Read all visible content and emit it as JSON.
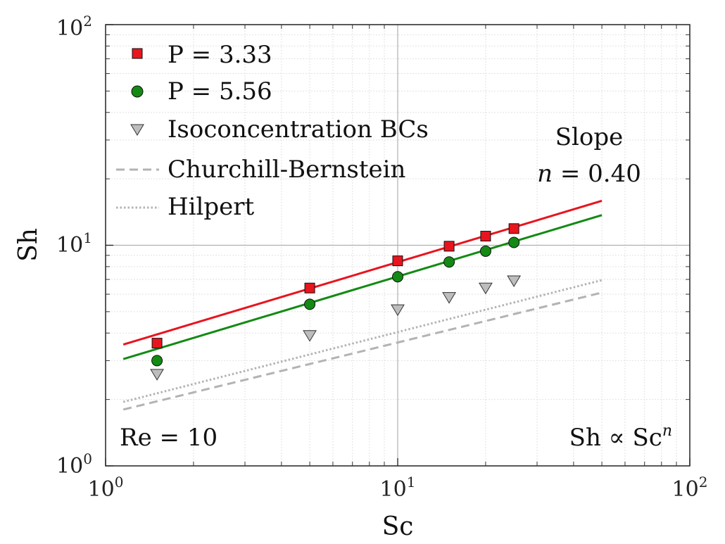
{
  "chart_data": {
    "type": "scatter",
    "title": "",
    "xlabel": "Sc",
    "ylabel": "Sh",
    "xscale": "log",
    "yscale": "log",
    "xlim": [
      1,
      100
    ],
    "ylim": [
      1,
      100
    ],
    "grid": true,
    "legend_position": "top-left",
    "x_tick_labels": [
      {
        "base": "10",
        "exp": "0",
        "value": 1
      },
      {
        "base": "10",
        "exp": "1",
        "value": 10
      },
      {
        "base": "10",
        "exp": "2",
        "value": 100
      }
    ],
    "y_tick_labels": [
      {
        "base": "10",
        "exp": "0",
        "value": 1
      },
      {
        "base": "10",
        "exp": "1",
        "value": 10
      },
      {
        "base": "10",
        "exp": "2",
        "value": 100
      }
    ],
    "series": [
      {
        "name": "P = 3.33",
        "kind": "markers",
        "marker": "square",
        "color": "#e8141e",
        "x": [
          1.5,
          5,
          10,
          15,
          20,
          25
        ],
        "y": [
          3.6,
          6.4,
          8.5,
          9.9,
          11.0,
          11.9
        ]
      },
      {
        "name": "P = 5.56",
        "kind": "markers",
        "marker": "circle",
        "color": "#138a13",
        "x": [
          1.5,
          5,
          10,
          15,
          20,
          25
        ],
        "y": [
          3.0,
          5.4,
          7.2,
          8.4,
          9.4,
          10.3
        ]
      },
      {
        "name": "Isoconcentration BCs",
        "kind": "markers",
        "marker": "triangle-down",
        "color": "#bdbdbd",
        "x": [
          1.5,
          5,
          10,
          15,
          20,
          25
        ],
        "y": [
          2.6,
          3.9,
          5.1,
          5.8,
          6.4,
          6.9
        ]
      },
      {
        "name": "Churchill-Bernstein",
        "kind": "line",
        "style": "dashed",
        "color": "#b3b3b3",
        "x": [
          1.15,
          50
        ],
        "y": [
          1.8,
          6.1
        ]
      },
      {
        "name": "Hilpert",
        "kind": "line",
        "style": "dotted",
        "color": "#b3b3b3",
        "x": [
          1.15,
          50
        ],
        "y": [
          1.95,
          6.95
        ]
      },
      {
        "name": "",
        "kind": "line",
        "style": "solid",
        "color": "#e8141e",
        "x": [
          1.15,
          50
        ],
        "y": [
          3.55,
          15.9
        ]
      },
      {
        "name": "",
        "kind": "line",
        "style": "solid",
        "color": "#138a13",
        "x": [
          1.15,
          50
        ],
        "y": [
          3.05,
          13.7
        ]
      }
    ],
    "annotations": {
      "slope_title": "Slope",
      "slope_n": "n",
      "slope_value": " = 0.40",
      "re_label": "Re = 10",
      "relation_prefix": "Sh ∝ Sc",
      "relation_exp": "n"
    }
  }
}
